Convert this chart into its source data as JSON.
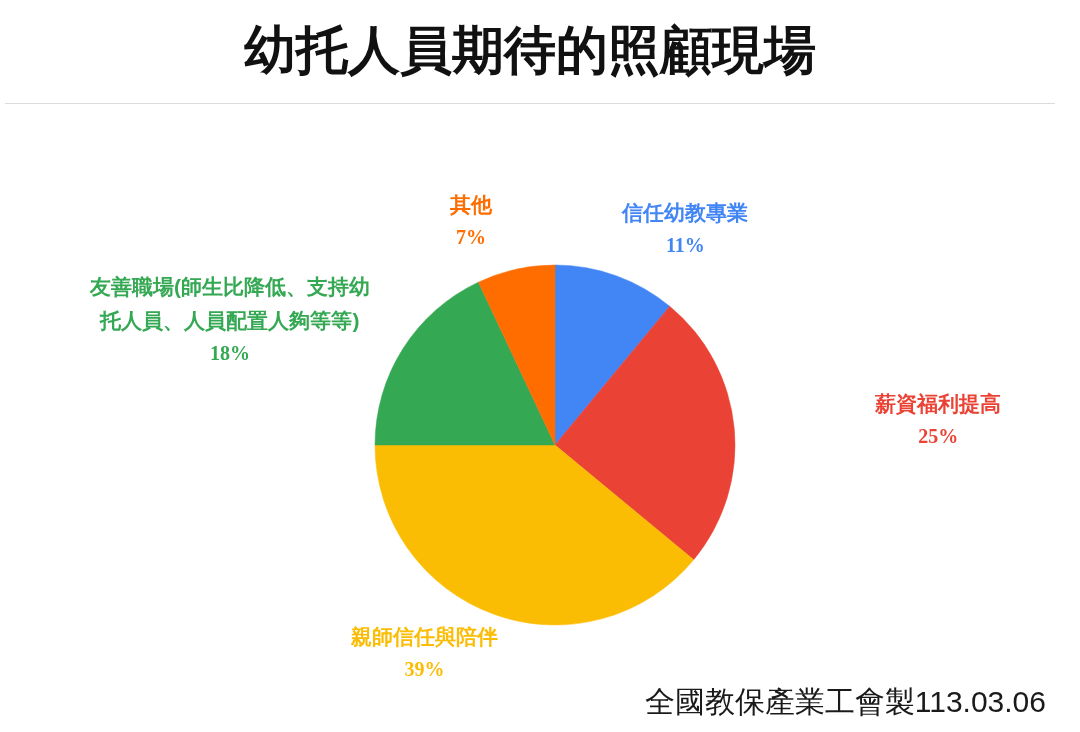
{
  "chart_data": {
    "type": "pie",
    "title": "幼托人員期待的照顧現場",
    "categories": [
      "信任幼教專業",
      "薪資福利提高",
      "親師信任與陪伴",
      "友善職場(師生比降低、支持幼托人員、人員配置人夠等等)",
      "其他"
    ],
    "values": [
      11,
      25,
      39,
      18,
      7
    ],
    "colors": [
      "#4285f4",
      "#ea4335",
      "#fbbc04",
      "#34a853",
      "#ff6d01"
    ],
    "value_labels": [
      "11%",
      "25%",
      "39%",
      "18%",
      "7%"
    ],
    "annotations": [
      "全國教保產業工會製113.03.06"
    ]
  }
}
